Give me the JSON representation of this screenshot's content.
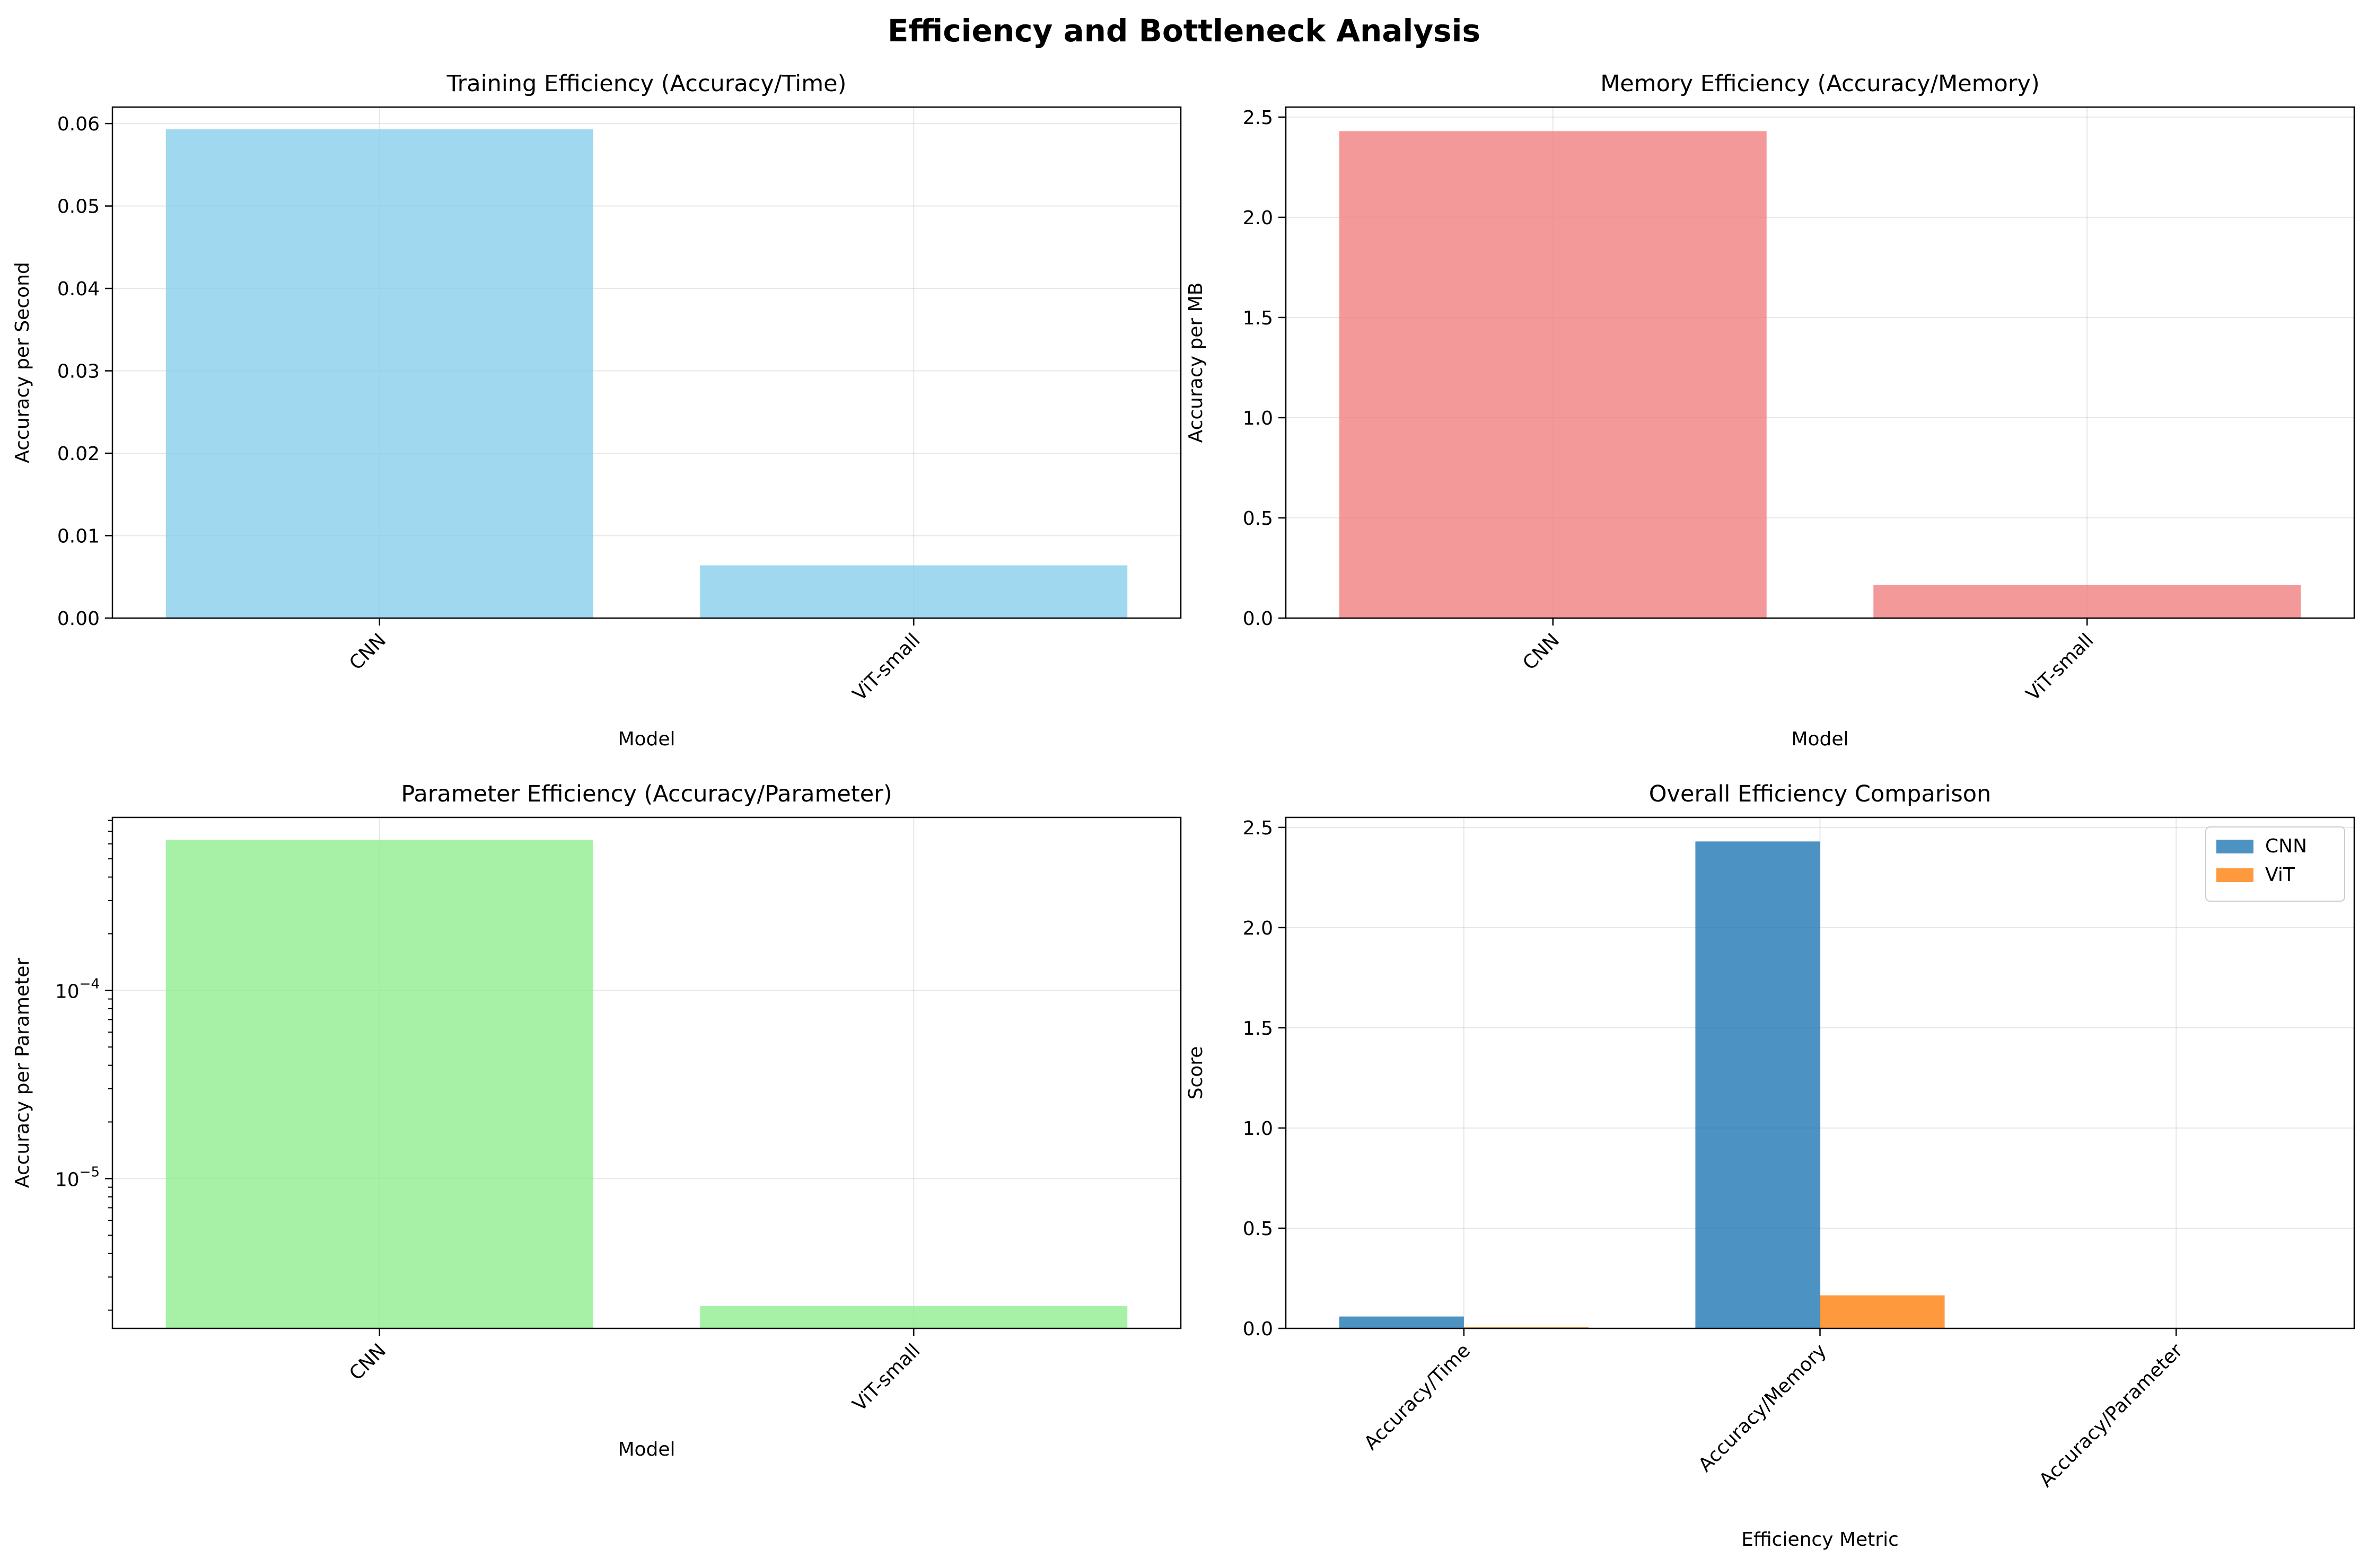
{
  "figure": {
    "suptitle": "Efficiency and Bottleneck Analysis"
  },
  "colors": {
    "training_bar": "#87CEEB",
    "memory_bar": "#F08080",
    "parameter_bar": "#90EE90",
    "cnn": "#1f77b4",
    "vit": "#ff7f0e",
    "grid": "#b0b0b0",
    "axis": "#000000"
  },
  "chart_data": [
    {
      "type": "bar",
      "title": "Training Efficiency (Accuracy/Time)",
      "xlabel": "Model",
      "ylabel": "Accuracy per Second",
      "categories": [
        "CNN",
        "ViT-small"
      ],
      "values": [
        0.0593,
        0.0064
      ],
      "ylim": [
        0,
        0.062
      ],
      "yticks": [
        0,
        0.01,
        0.02,
        0.03,
        0.04,
        0.05,
        0.06
      ],
      "ytick_labels": [
        "0.00",
        "0.01",
        "0.02",
        "0.03",
        "0.04",
        "0.05",
        "0.06"
      ],
      "grid": true,
      "color": "#87CEEB"
    },
    {
      "type": "bar",
      "title": "Memory Efficiency (Accuracy/Memory)",
      "xlabel": "Model",
      "ylabel": "Accuracy per MB",
      "categories": [
        "CNN",
        "ViT-small"
      ],
      "values": [
        2.43,
        0.165
      ],
      "ylim": [
        0,
        2.55
      ],
      "yticks": [
        0,
        0.5,
        1.0,
        1.5,
        2.0,
        2.5
      ],
      "ytick_labels": [
        "0.0",
        "0.5",
        "1.0",
        "1.5",
        "2.0",
        "2.5"
      ],
      "grid": true,
      "color": "#F08080"
    },
    {
      "type": "bar",
      "title": "Parameter Efficiency (Accuracy/Parameter)",
      "xlabel": "Model",
      "ylabel": "Accuracy per Parameter",
      "categories": [
        "CNN",
        "ViT-small"
      ],
      "values": [
        0.00063,
        2.1e-06
      ],
      "yscale": "log",
      "ylim": [
        1.6e-06,
        0.00083
      ],
      "yticks_major": [
        1e-05,
        0.0001
      ],
      "ytick_labels": [
        "10^-5",
        "10^-4"
      ],
      "grid": true,
      "color": "#90EE90"
    },
    {
      "type": "bar",
      "title": "Overall Efficiency Comparison",
      "xlabel": "Efficiency Metric",
      "ylabel": "Score",
      "categories": [
        "Accuracy/Time",
        "Accuracy/Memory",
        "Accuracy/Parameter"
      ],
      "series": [
        {
          "name": "CNN",
          "values": [
            0.0593,
            2.43,
            0.00063
          ],
          "color": "#1f77b4"
        },
        {
          "name": "ViT",
          "values": [
            0.0064,
            0.165,
            2.1e-06
          ],
          "color": "#ff7f0e"
        }
      ],
      "ylim": [
        0,
        2.55
      ],
      "yticks": [
        0,
        0.5,
        1.0,
        1.5,
        2.0,
        2.5
      ],
      "ytick_labels": [
        "0.0",
        "0.5",
        "1.0",
        "1.5",
        "2.0",
        "2.5"
      ],
      "legend_position": "top-right",
      "grid": true
    }
  ]
}
